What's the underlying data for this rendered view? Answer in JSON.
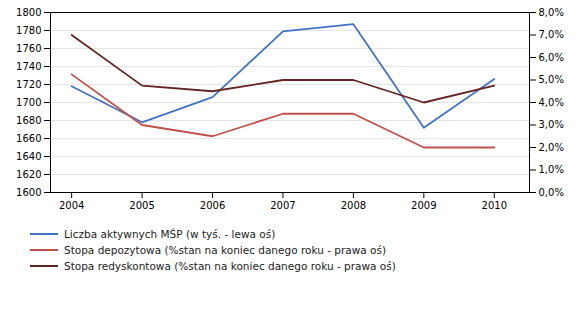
{
  "chart_data": {
    "type": "line",
    "x": [
      2004,
      2005,
      2006,
      2007,
      2008,
      2009,
      2010
    ],
    "xlim": [
      2003.7,
      2010.5
    ],
    "xticks": [
      2004,
      2005,
      2006,
      2007,
      2008,
      2009,
      2010
    ],
    "ylim": [
      1600,
      1800
    ],
    "yticks": [
      1600,
      1620,
      1640,
      1660,
      1680,
      1700,
      1720,
      1740,
      1760,
      1780,
      1800
    ],
    "y2lim": [
      0.0,
      0.08
    ],
    "y2ticks": [
      {
        "value": 0.0,
        "label": "0,0%"
      },
      {
        "value": 0.01,
        "label": "1,0%"
      },
      {
        "value": 0.02,
        "label": "2,0%"
      },
      {
        "value": 0.03,
        "label": "3,0%"
      },
      {
        "value": 0.04,
        "label": "4,0%"
      },
      {
        "value": 0.05,
        "label": "5,0%"
      },
      {
        "value": 0.06,
        "label": "6,0%"
      },
      {
        "value": 0.07,
        "label": "7,0%"
      },
      {
        "value": 0.08,
        "label": "8,0%"
      }
    ],
    "grid": true,
    "legend": "bottom",
    "series": [
      {
        "name": "Liczba aktywnych MŚP (w tyś. - lewa oś)",
        "color": "#4472C4",
        "values": [
          1718,
          1678,
          1706,
          1779,
          1787,
          1672,
          1726
        ]
      },
      {
        "name": "Stopa depozytowa (%stan na koniec danego roku - prawa oś)",
        "color": "#C0504D",
        "axis": "y2",
        "values": [
          0.0525,
          0.03,
          0.025,
          0.035,
          0.035,
          0.02,
          0.02
        ]
      },
      {
        "name": "Stopa redyskontowa (%stan na koniec danego roku - prawa oś)",
        "color": "#632523",
        "axis": "y2",
        "values": [
          0.07,
          0.0475,
          0.045,
          0.05,
          0.05,
          0.04,
          0.0475
        ]
      }
    ]
  }
}
